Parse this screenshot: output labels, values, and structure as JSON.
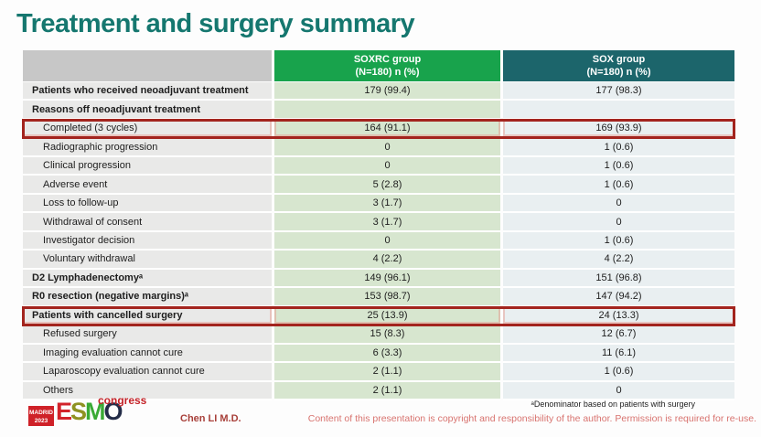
{
  "title": "Treatment and surgery summary",
  "table": {
    "columns": [
      {
        "name": "SOXRC group",
        "sub": "(N=180)  n (%)"
      },
      {
        "name": "SOX group",
        "sub": "(N=180)  n (%)"
      }
    ],
    "rows": [
      {
        "label": "Patients who received neoadjuvant treatment",
        "soxrc": "179 (99.4)",
        "sox": "177 (98.3)",
        "bold": true,
        "highlight": false
      },
      {
        "label": "Reasons off neoadjuvant treatment",
        "soxrc": "",
        "sox": "",
        "bold": true,
        "highlight": false
      },
      {
        "label": "Completed (3 cycles)",
        "soxrc": "164 (91.1)",
        "sox": "169 (93.9)",
        "bold": false,
        "highlight": true
      },
      {
        "label": "Radiographic progression",
        "soxrc": "0",
        "sox": "1 (0.6)",
        "bold": false,
        "highlight": false
      },
      {
        "label": "Clinical progression",
        "soxrc": "0",
        "sox": "1 (0.6)",
        "bold": false,
        "highlight": false
      },
      {
        "label": "Adverse event",
        "soxrc": "5 (2.8)",
        "sox": "1 (0.6)",
        "bold": false,
        "highlight": false
      },
      {
        "label": "Loss to follow-up",
        "soxrc": "3 (1.7)",
        "sox": "0",
        "bold": false,
        "highlight": false
      },
      {
        "label": "Withdrawal of consent",
        "soxrc": "3 (1.7)",
        "sox": "0",
        "bold": false,
        "highlight": false
      },
      {
        "label": "Investigator decision",
        "soxrc": "0",
        "sox": "1 (0.6)",
        "bold": false,
        "highlight": false
      },
      {
        "label": "Voluntary withdrawal",
        "soxrc": "4 (2.2)",
        "sox": "4 (2.2)",
        "bold": false,
        "highlight": false
      },
      {
        "label": "D2 Lymphadenectomyᵃ",
        "soxrc": "149 (96.1)",
        "sox": "151 (96.8)",
        "bold": true,
        "highlight": false
      },
      {
        "label": "R0 resection (negative margins)ᵃ",
        "soxrc": "153 (98.7)",
        "sox": "147 (94.2)",
        "bold": true,
        "highlight": false
      },
      {
        "label": "Patients with cancelled surgery",
        "soxrc": "25 (13.9)",
        "sox": "24 (13.3)",
        "bold": true,
        "highlight": true
      },
      {
        "label": "Refused surgery",
        "soxrc": "15 (8.3)",
        "sox": "12 (6.7)",
        "bold": false,
        "highlight": false
      },
      {
        "label": "Imaging evaluation cannot cure",
        "soxrc": "6 (3.3)",
        "sox": "11 (6.1)",
        "bold": false,
        "highlight": false
      },
      {
        "label": "Laparoscopy evaluation cannot cure",
        "soxrc": "2 (1.1)",
        "sox": "1 (0.6)",
        "bold": false,
        "highlight": false
      },
      {
        "label": "Others",
        "soxrc": "2 (1.1)",
        "sox": "0",
        "bold": false,
        "highlight": false
      }
    ]
  },
  "footer": {
    "logo": {
      "location": "MADRID",
      "year": "2023",
      "congress": "congress",
      "esmo_letters": [
        {
          "char": "E",
          "color": "#d2232a"
        },
        {
          "char": "S",
          "color": "#8f9222"
        },
        {
          "char": "M",
          "color": "#3aaa35"
        },
        {
          "char": "O",
          "color": "#232c47"
        }
      ]
    },
    "presenter": "Chen LI M.D.",
    "footnote": "ᵃDenominator based on patients with surgery",
    "copyright": "Content of this presentation is copyright and responsibility of the author. Permission is required for re-use."
  },
  "colors": {
    "title_teal": "#15776f",
    "soxrc_header_green": "#18a34c",
    "sox_header_teal": "#1c656b",
    "soxrc_cell_green": "#d7e6cf",
    "sox_cell_gray": "#e9eff1",
    "label_cell_gray": "#e9e9e8",
    "header_empty_gray": "#c7c7c7",
    "highlight_red": "#a3241e",
    "copyright_red": "#d8736f"
  }
}
